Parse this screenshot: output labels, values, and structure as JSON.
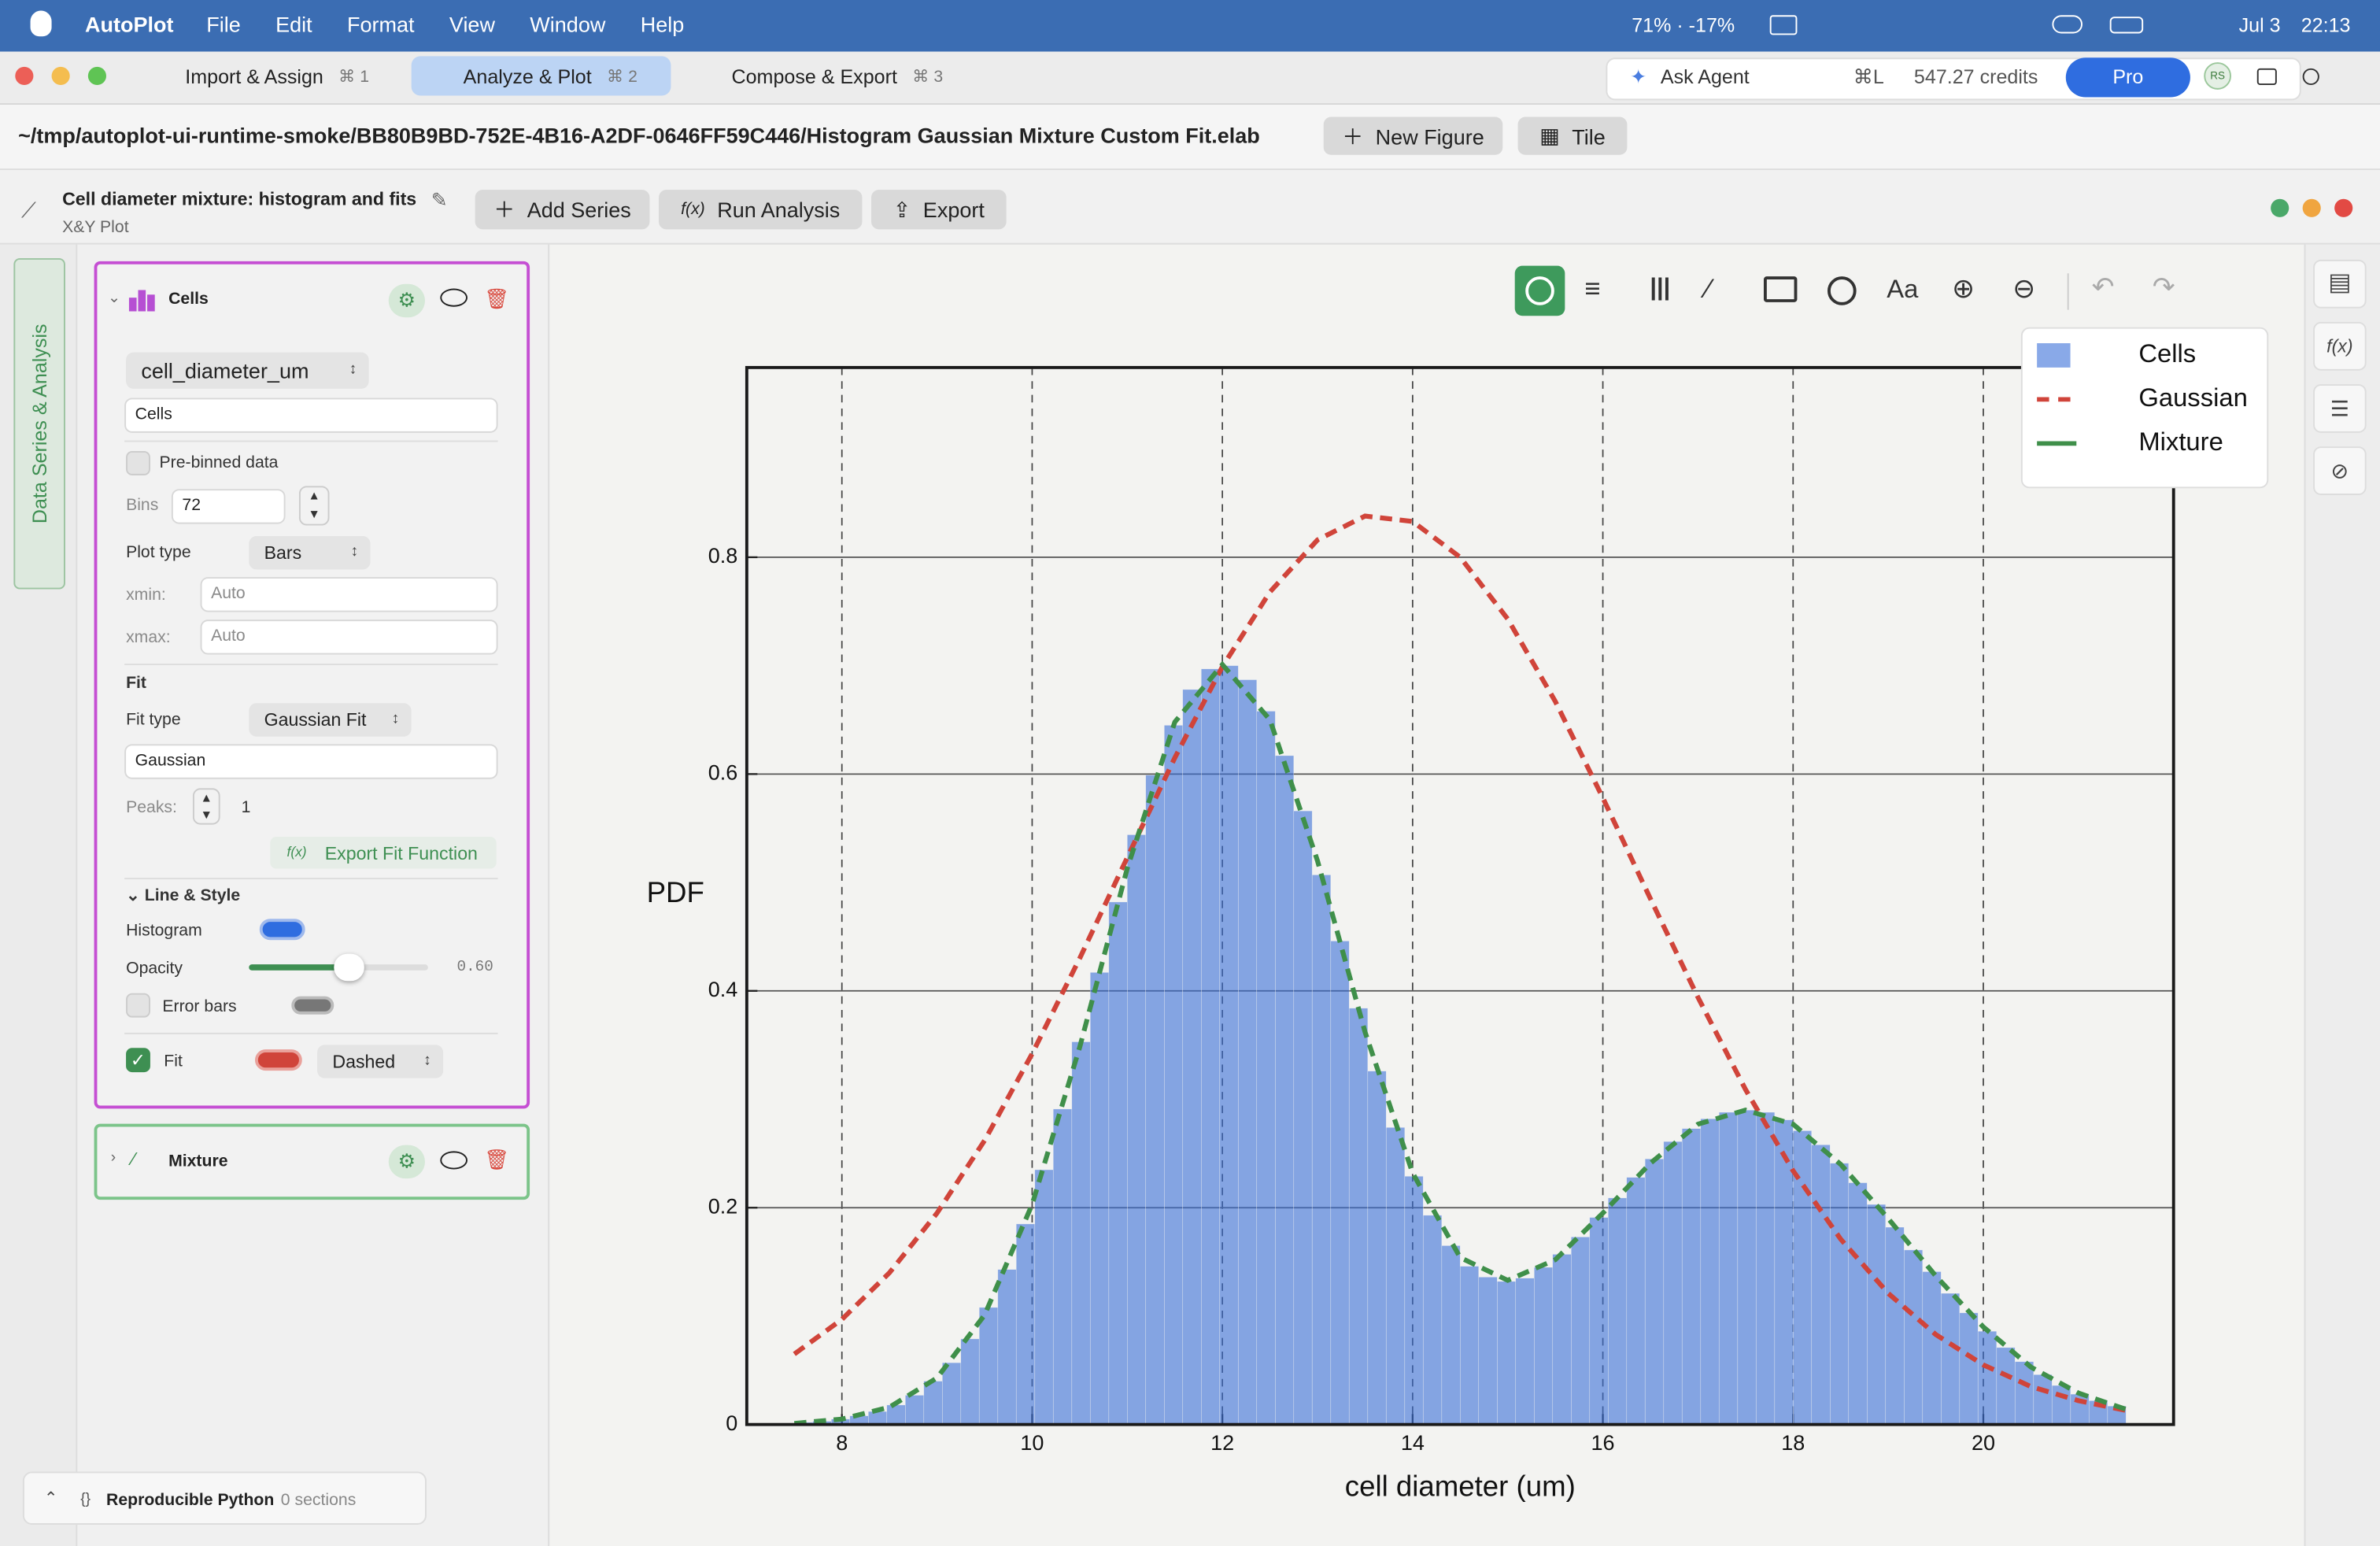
{
  "menubar": {
    "app": "AutoPlot",
    "menus": [
      "File",
      "Edit",
      "Format",
      "View",
      "Window",
      "Help"
    ],
    "battery": "71% · -17%",
    "date": "Jul 3",
    "time": "22:13"
  },
  "tabs": [
    {
      "label": "Import & Assign",
      "shortcut": "⌘ 1"
    },
    {
      "label": "Analyze & Plot",
      "shortcut": "⌘ 2"
    },
    {
      "label": "Compose & Export",
      "shortcut": "⌘ 3"
    }
  ],
  "agent": {
    "label": "Ask Agent",
    "shortcut": "⌘L",
    "credits": "547.27 credits",
    "plan": "Pro",
    "avatar": "RS"
  },
  "path": "~/tmp/autoplot-ui-runtime-smoke/BB80B9BD-752E-4B16-A2DF-0646FF59C446/Histogram Gaussian Mixture Custom Fit.elab",
  "path_buttons": [
    "New Figure",
    "Tile"
  ],
  "figure": {
    "title": "Cell diameter mixture: histogram and fits",
    "subtitle": "X&Y Plot",
    "actions": [
      "Add Series",
      "Run Analysis",
      "Export"
    ],
    "fx": "f(x)"
  },
  "sidebar_tab": "Data Series & Analysis",
  "series_panel": {
    "name": "Cells",
    "column": "cell_diameter_um",
    "label_field": "Cells",
    "prebinned": "Pre-binned data",
    "bins_label": "Bins",
    "bins": 72,
    "plot_type_label": "Plot type",
    "plot_type": "Bars",
    "xmin_label": "xmin:",
    "xmax_label": "xmax:",
    "auto": "Auto",
    "fit_header": "Fit",
    "fit_type_label": "Fit type",
    "fit_type": "Gaussian Fit",
    "fit_name": "Gaussian",
    "peaks_label": "Peaks:",
    "peaks": 1,
    "fx": "f(x)",
    "export_fit": "Export Fit Function",
    "style_header": "Line & Style",
    "histogram_label": "Histogram",
    "opacity_label": "Opacity",
    "opacity": "0.60",
    "error_bars": "Error bars",
    "fit_label": "Fit",
    "fit_style": "Dashed"
  },
  "mixture_panel": {
    "name": "Mixture"
  },
  "python": {
    "label": "Reproducible Python",
    "sections": "0 sections"
  },
  "plot_toolbar": {
    "text_tool": "Aa"
  },
  "right_rail": {
    "fx": "f(x)"
  },
  "chart_data": {
    "type": "histogram",
    "xlabel": "cell diameter (um)",
    "ylabel": "PDF",
    "xlim": [
      7,
      22
    ],
    "ylim": [
      0,
      0.975
    ],
    "xticks": [
      8,
      10,
      12,
      14,
      16,
      18,
      20
    ],
    "yticks": [
      0,
      0.2,
      0.4,
      0.6,
      0.8
    ],
    "grid": true,
    "legend": "upper right",
    "series": [
      {
        "name": "Cells",
        "type": "histogram",
        "color": "#3a6fd8",
        "opacity": 0.6,
        "bins": [
          7.5,
          7.694,
          7.889,
          8.083,
          8.278,
          8.472,
          8.667,
          8.861,
          9.056,
          9.25,
          9.444,
          9.639,
          9.833,
          10.028,
          10.222,
          10.417,
          10.611,
          10.806,
          11,
          11.194,
          11.389,
          11.583,
          11.778,
          11.972,
          12.167,
          12.361,
          12.556,
          12.75,
          12.944,
          13.139,
          13.333,
          13.528,
          13.722,
          13.917,
          14.111,
          14.306,
          14.5,
          14.694,
          14.889,
          15.083,
          15.278,
          15.472,
          15.667,
          15.861,
          16.056,
          16.25,
          16.444,
          16.639,
          16.833,
          17.028,
          17.222,
          17.417,
          17.611,
          17.806,
          18,
          18.194,
          18.389,
          18.583,
          18.778,
          18.972,
          19.167,
          19.361,
          19.556,
          19.75,
          19.944,
          20.139,
          20.333,
          20.528,
          20.722,
          20.917,
          21.111,
          21.306,
          21.5
        ],
        "values": [
          0.002,
          0.003,
          0.005,
          0.008,
          0.012,
          0.018,
          0.027,
          0.04,
          0.057,
          0.079,
          0.108,
          0.143,
          0.185,
          0.235,
          0.291,
          0.353,
          0.417,
          0.482,
          0.544,
          0.599,
          0.645,
          0.678,
          0.697,
          0.7,
          0.687,
          0.658,
          0.617,
          0.566,
          0.507,
          0.446,
          0.384,
          0.326,
          0.274,
          0.229,
          0.193,
          0.165,
          0.146,
          0.136,
          0.132,
          0.135,
          0.145,
          0.157,
          0.173,
          0.191,
          0.209,
          0.228,
          0.245,
          0.261,
          0.273,
          0.282,
          0.288,
          0.29,
          0.288,
          0.281,
          0.271,
          0.258,
          0.241,
          0.223,
          0.203,
          0.182,
          0.161,
          0.141,
          0.121,
          0.103,
          0.086,
          0.071,
          0.058,
          0.046,
          0.036,
          0.028,
          0.022,
          0.017
        ]
      },
      {
        "name": "Gaussian",
        "type": "line",
        "color": "#d0443a",
        "dashed": true,
        "x": [
          7.5,
          8,
          8.5,
          9,
          9.5,
          10,
          10.5,
          11,
          11.5,
          12,
          12.5,
          13,
          13.5,
          14,
          14.5,
          15,
          15.5,
          16,
          16.5,
          17,
          17.5,
          18,
          18.5,
          19,
          19.5,
          20,
          20.5,
          21,
          21.5
        ],
        "values": [
          0.065,
          0.097,
          0.14,
          0.195,
          0.262,
          0.342,
          0.43,
          0.523,
          0.615,
          0.699,
          0.768,
          0.816,
          0.838,
          0.833,
          0.8,
          0.743,
          0.667,
          0.578,
          0.485,
          0.394,
          0.309,
          0.234,
          0.171,
          0.121,
          0.083,
          0.055,
          0.035,
          0.022,
          0.013
        ]
      },
      {
        "name": "Mixture",
        "type": "line",
        "color": "#3f8f4a",
        "dashed": true,
        "x": [
          7.5,
          8,
          8.5,
          9,
          9.5,
          10,
          10.5,
          11,
          11.5,
          12,
          12.5,
          13,
          13.5,
          14,
          14.5,
          15,
          15.5,
          16,
          16.5,
          17,
          17.5,
          18,
          18.5,
          19,
          19.5,
          20,
          20.5,
          21,
          21.5
        ],
        "values": [
          0.001,
          0.005,
          0.016,
          0.043,
          0.101,
          0.203,
          0.348,
          0.513,
          0.648,
          0.701,
          0.65,
          0.52,
          0.362,
          0.232,
          0.154,
          0.133,
          0.152,
          0.195,
          0.241,
          0.277,
          0.29,
          0.277,
          0.24,
          0.19,
          0.137,
          0.09,
          0.053,
          0.029,
          0.014
        ]
      }
    ]
  }
}
